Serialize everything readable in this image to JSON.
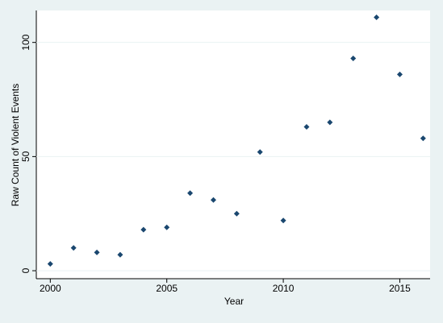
{
  "chart_data": {
    "type": "scatter",
    "x_label": "Year",
    "y_label": "Raw Count of Violent Events",
    "x": [
      2000,
      2001,
      2002,
      2003,
      2004,
      2005,
      2006,
      2007,
      2008,
      2009,
      2010,
      2011,
      2012,
      2013,
      2014,
      2015,
      2016
    ],
    "series": [
      {
        "color": "#1a476f",
        "values": [
          3,
          10,
          8,
          7,
          18,
          19,
          34,
          31,
          25,
          52,
          22,
          63,
          65,
          93,
          111,
          86,
          58
        ]
      }
    ],
    "xlim": [
      1999.4,
      2016.3
    ],
    "ylim": [
      -3.5,
      114
    ],
    "xticks": [
      2000,
      2005,
      2010,
      2015
    ],
    "yticks": [
      0,
      50,
      100
    ],
    "grid": true
  }
}
